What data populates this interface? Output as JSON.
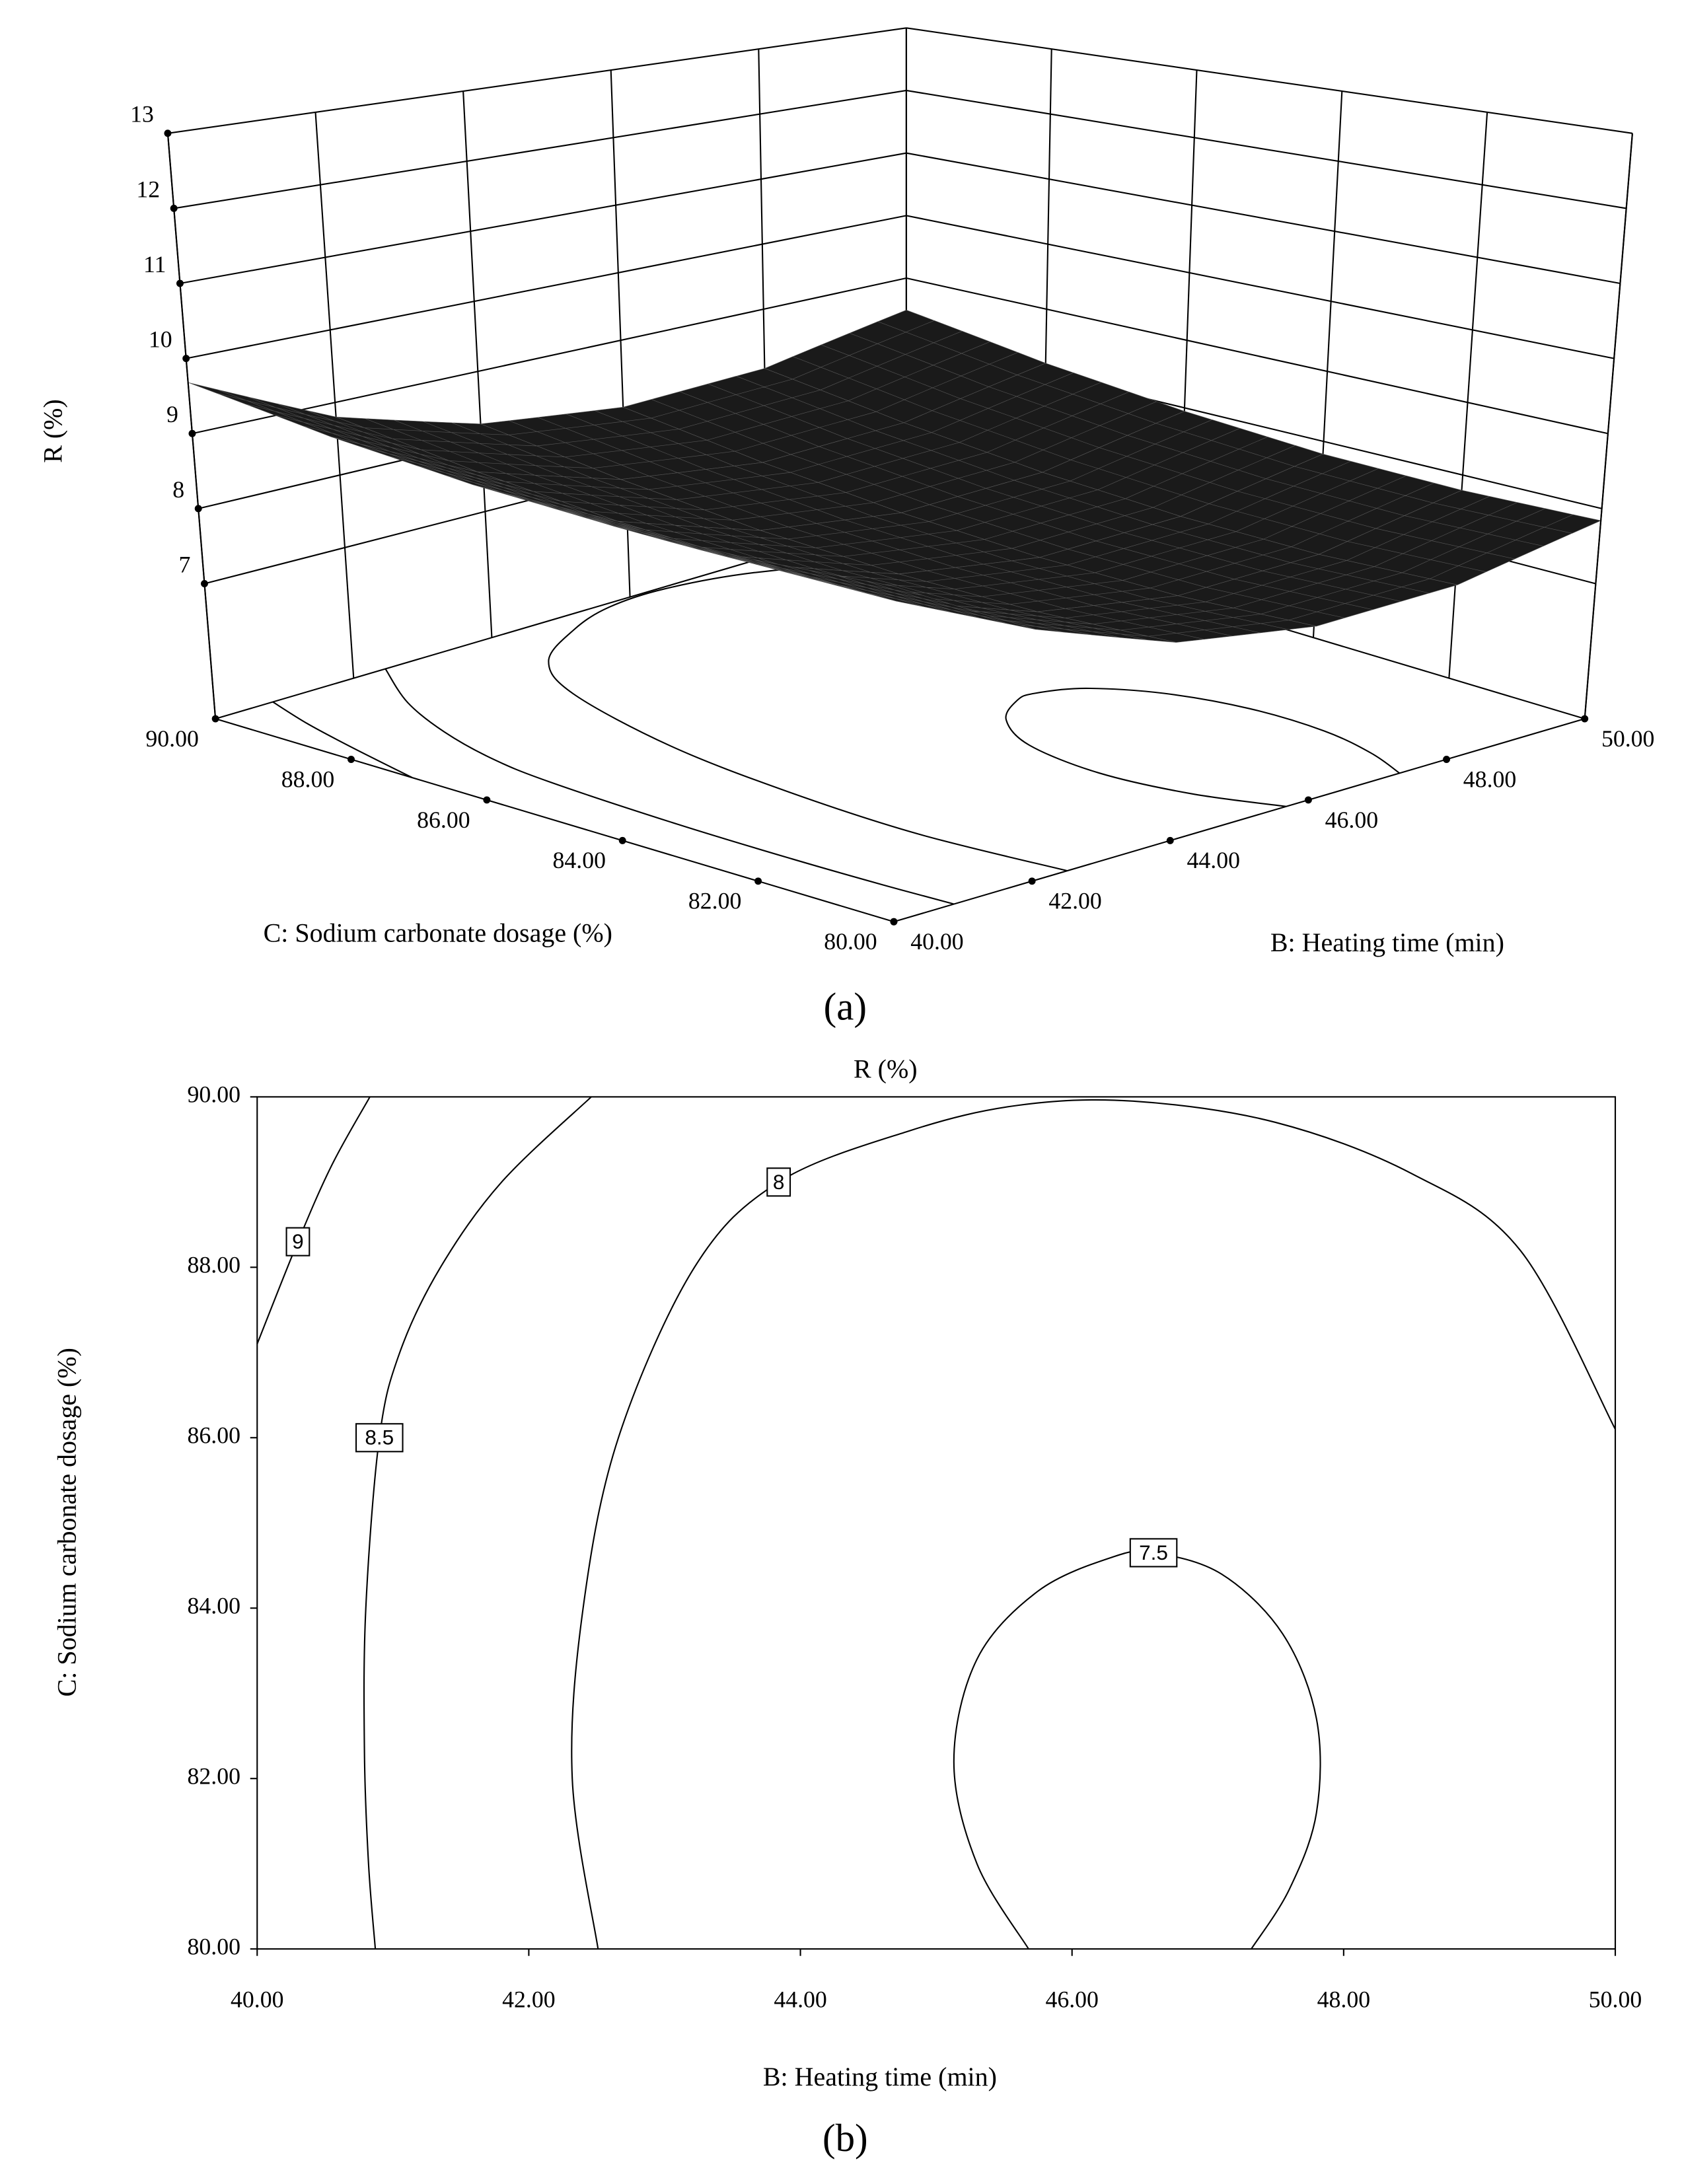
{
  "chart_data": [
    {
      "type": "surface",
      "caption": "(a)",
      "zlabel": "R (%)",
      "xlabel": "B: Heating time (min)",
      "ylabel": "C: Sodium carbonate dosage (%)",
      "xlim": [
        40,
        50
      ],
      "ylim": [
        80,
        90
      ],
      "zlim": [
        5.2,
        13
      ],
      "xticks": [
        {
          "value": 40,
          "label": "40.00"
        },
        {
          "value": 42,
          "label": "42.00"
        },
        {
          "value": 44,
          "label": "44.00"
        },
        {
          "value": 46,
          "label": "46.00"
        },
        {
          "value": 48,
          "label": "48.00"
        },
        {
          "value": 50,
          "label": "50.00"
        }
      ],
      "yticks": [
        {
          "value": 80,
          "label": "80.00"
        },
        {
          "value": 82,
          "label": "82.00"
        },
        {
          "value": 84,
          "label": "84.00"
        },
        {
          "value": 86,
          "label": "86.00"
        },
        {
          "value": 88,
          "label": "88.00"
        },
        {
          "value": 90,
          "label": "90.00"
        }
      ],
      "zticks": [
        7,
        8,
        9,
        10,
        11,
        12,
        13
      ],
      "color": "#1a1a1a",
      "x": [
        40,
        42,
        44,
        46,
        48,
        50
      ],
      "y": [
        80,
        82,
        84,
        86,
        88,
        90
      ],
      "z": [
        [
          9.03,
          8.16,
          7.6,
          7.37,
          7.45,
          7.84
        ],
        [
          8.98,
          8.1,
          7.55,
          7.31,
          7.39,
          7.79
        ],
        [
          9.01,
          8.14,
          7.59,
          7.35,
          7.43,
          7.82
        ],
        [
          9.14,
          8.27,
          7.71,
          7.48,
          7.56,
          7.95
        ],
        [
          9.36,
          8.49,
          7.94,
          7.7,
          7.78,
          8.17
        ],
        [
          9.68,
          8.8,
          8.25,
          8.01,
          8.09,
          8.49
        ]
      ]
    },
    {
      "type": "contour",
      "caption": "(b)",
      "title": "R (%)",
      "xlabel": "B: Heating time (min)",
      "ylabel": "C: Sodium carbonate dosage  (%)",
      "xlim": [
        40,
        50
      ],
      "ylim": [
        80,
        90
      ],
      "xticks": [
        {
          "value": 40,
          "label": "40.00"
        },
        {
          "value": 42,
          "label": "42.00"
        },
        {
          "value": 44,
          "label": "44.00"
        },
        {
          "value": 46,
          "label": "46.00"
        },
        {
          "value": 48,
          "label": "48.00"
        },
        {
          "value": 50,
          "label": "50.00"
        }
      ],
      "yticks": [
        {
          "value": 80,
          "label": "80.00"
        },
        {
          "value": 82,
          "label": "82.00"
        },
        {
          "value": 84,
          "label": "84.00"
        },
        {
          "value": 86,
          "label": "86.00"
        },
        {
          "value": 88,
          "label": "88.00"
        },
        {
          "value": 90,
          "label": "90.00"
        }
      ],
      "color": "#000000",
      "contours": [
        {
          "level": 9,
          "x": [
            40,
            40.3,
            40.55,
            40.83
          ],
          "y": [
            87.1,
            88.3,
            89.2,
            90
          ]
        },
        {
          "level": 8.5,
          "x": [
            42.46,
            41.8,
            41.35,
            41.05,
            40.9,
            40.8,
            40.79,
            40.82,
            40.87
          ],
          "y": [
            90,
            89,
            88,
            87,
            86,
            84,
            82.3,
            81,
            80
          ]
        },
        {
          "level": 8,
          "x": [
            42.51,
            42.32,
            42.4,
            42.66,
            43.22,
            43.84,
            44.8,
            45.6,
            46.45,
            47.5,
            48.5,
            49.3,
            50
          ],
          "y": [
            80,
            82,
            84,
            86,
            88,
            89,
            89.6,
            89.9,
            89.95,
            89.7,
            89.1,
            88.2,
            86.1
          ]
        },
        {
          "level": 7.5,
          "x": [
            45.68,
            45.3,
            45.13,
            45.3,
            45.75,
            46.3,
            46.6,
            47.1,
            47.55,
            47.8,
            47.8,
            47.6,
            47.32
          ],
          "y": [
            80,
            81,
            82.2,
            83.4,
            84.2,
            84.6,
            84.65,
            84.4,
            83.7,
            82.7,
            81.6,
            80.7,
            80
          ]
        }
      ]
    }
  ]
}
